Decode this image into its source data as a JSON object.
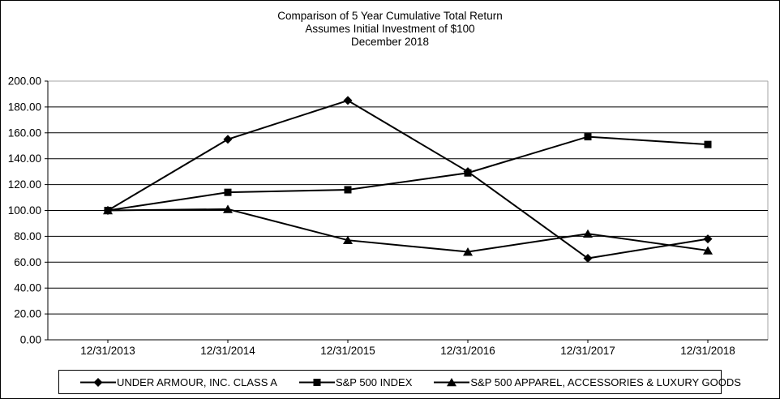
{
  "title": {
    "line1": "Comparison of 5 Year Cumulative Total Return",
    "line2": "Assumes Initial Investment of $100",
    "line3": "December 2018"
  },
  "chart_data": {
    "type": "line",
    "title": "Comparison of 5 Year Cumulative Total Return",
    "subtitle": "Assumes Initial Investment of $100",
    "date_label": "December 2018",
    "categories": [
      "12/31/2013",
      "12/31/2014",
      "12/31/2015",
      "12/31/2016",
      "12/31/2017",
      "12/31/2018"
    ],
    "series": [
      {
        "name": "UNDER ARMOUR, INC. CLASS A",
        "marker": "diamond",
        "values": [
          100,
          155,
          185,
          130,
          63,
          78
        ]
      },
      {
        "name": "S&P 500 INDEX",
        "marker": "square",
        "values": [
          100,
          114,
          116,
          129,
          157,
          151
        ]
      },
      {
        "name": "S&P 500 APPAREL, ACCESSORIES & LUXURY GOODS",
        "marker": "triangle",
        "values": [
          100,
          101,
          77,
          68,
          82,
          69
        ]
      }
    ],
    "ylim": [
      0,
      200
    ],
    "ystep": 20,
    "y_tick_labels": [
      "0.00",
      "20.00",
      "40.00",
      "60.00",
      "80.00",
      "100.00",
      "120.00",
      "140.00",
      "160.00",
      "180.00",
      "200.00"
    ],
    "xlabel": "",
    "ylabel": "",
    "grid": true,
    "legend_position": "bottom",
    "line_color": "#000000",
    "frame_color": "#a6a6a6",
    "background": "#ffffff"
  }
}
